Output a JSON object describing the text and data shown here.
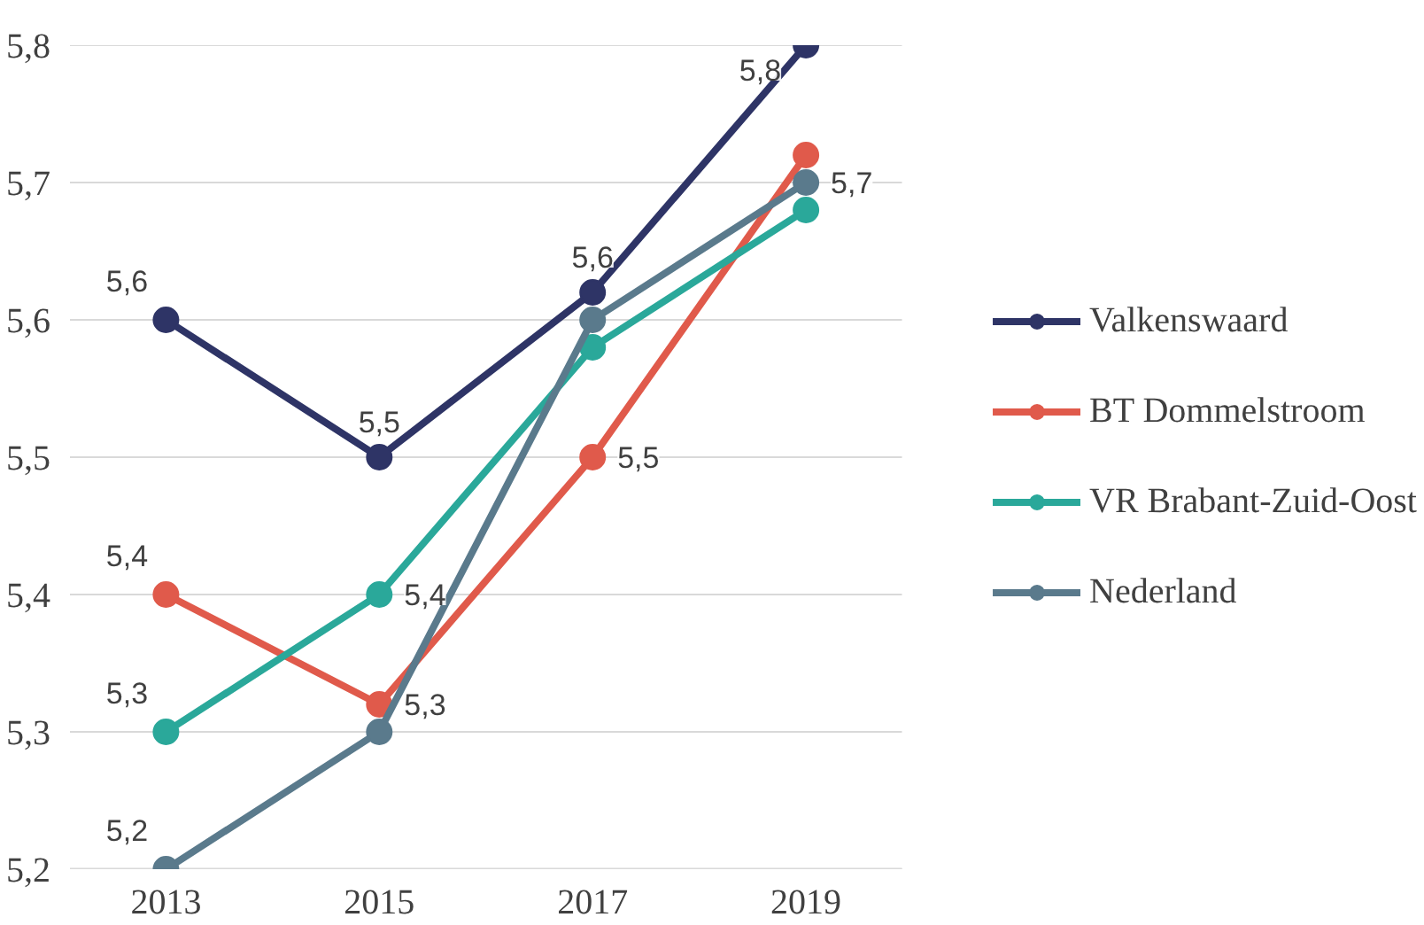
{
  "chart_data": {
    "type": "line",
    "categories": [
      "2013",
      "2015",
      "2017",
      "2019"
    ],
    "series": [
      {
        "name": "Valkenswaard",
        "color": "#2e3466",
        "values": [
          5.6,
          5.5,
          5.62,
          5.8
        ],
        "value_labels": [
          "5,6",
          "5,5",
          "5,6",
          "5,8"
        ]
      },
      {
        "name": "BT Dommelstroom",
        "color": "#e05a4b",
        "values": [
          5.4,
          5.32,
          5.5,
          5.72
        ],
        "value_labels": [
          "5,4",
          "5,3",
          "5,5",
          null
        ]
      },
      {
        "name": "VR Brabant-Zuid-Oost",
        "color": "#2aa89a",
        "values": [
          5.3,
          5.4,
          5.58,
          5.68
        ],
        "value_labels": [
          "5,3",
          "5,4",
          null,
          null
        ]
      },
      {
        "name": "Nederland",
        "color": "#5a7a8c",
        "values": [
          5.2,
          5.3,
          5.6,
          5.7
        ],
        "value_labels": [
          "5,2",
          null,
          null,
          "5,7"
        ]
      }
    ],
    "ylim": [
      5.2,
      5.8
    ],
    "yticks": [
      {
        "value": 5.2,
        "label": "5,2"
      },
      {
        "value": 5.3,
        "label": "5,3"
      },
      {
        "value": 5.4,
        "label": "5,4"
      },
      {
        "value": 5.5,
        "label": "5,5"
      },
      {
        "value": 5.6,
        "label": "5,6"
      },
      {
        "value": 5.7,
        "label": "5,7"
      },
      {
        "value": 5.8,
        "label": "5,8"
      }
    ],
    "grid": "y",
    "legend": "right",
    "marker": "circle",
    "line_style": "solid"
  }
}
